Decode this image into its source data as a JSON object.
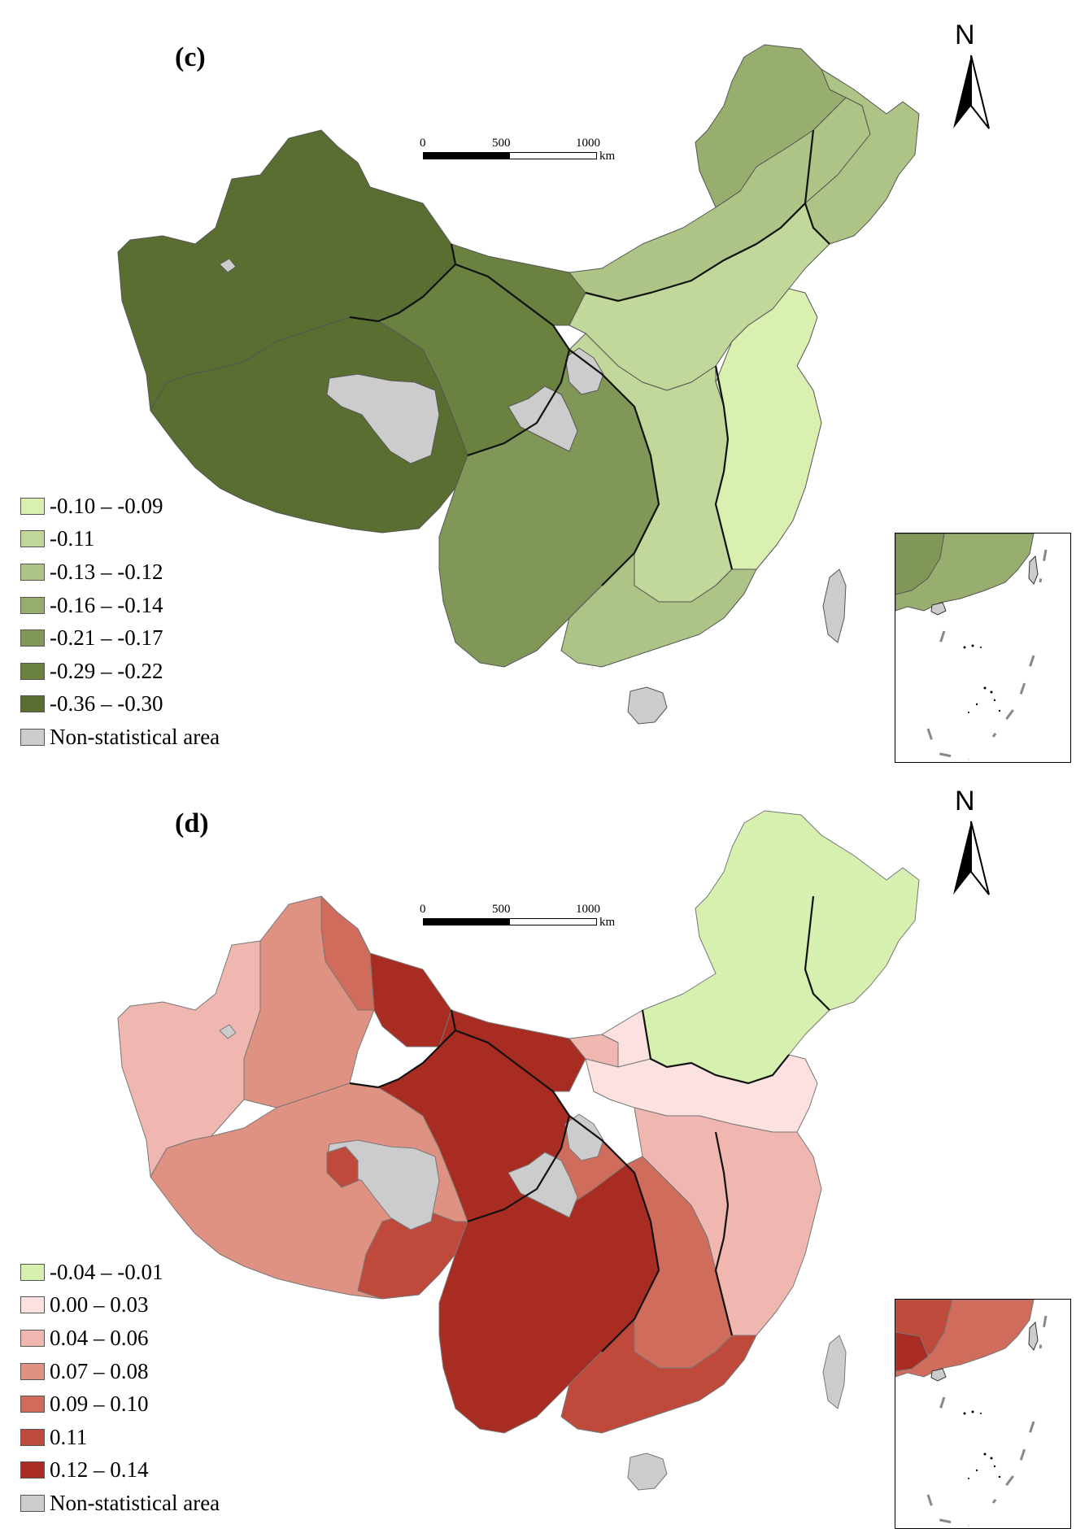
{
  "panels": [
    {
      "id": "c",
      "label": "(c)",
      "north_label": "N",
      "scale": {
        "ticks": [
          "0",
          "500",
          "1000"
        ],
        "unit": "km"
      },
      "legend": [
        {
          "label": "-0.10 – -0.09",
          "color": "#d9f0b0"
        },
        {
          "label": "-0.11",
          "color": "#c2d89a"
        },
        {
          "label": "-0.13 – -0.12",
          "color": "#adc486"
        },
        {
          "label": "-0.16 – -0.14",
          "color": "#98ae6e"
        },
        {
          "label": "-0.21 – -0.17",
          "color": "#819758"
        },
        {
          "label": "-0.29 – -0.22",
          "color": "#6b8140"
        },
        {
          "label": "-0.36 – -0.30",
          "color": "#5a6e31"
        },
        {
          "label": "Non-statistical area",
          "color": "#cccccc"
        }
      ]
    },
    {
      "id": "d",
      "label": "(d)",
      "north_label": "N",
      "scale": {
        "ticks": [
          "0",
          "500",
          "1000"
        ],
        "unit": "km"
      },
      "legend": [
        {
          "label": "-0.04 – -0.01",
          "color": "#d6f0b0"
        },
        {
          "label": "0.00 – 0.03",
          "color": "#fde0e0"
        },
        {
          "label": "0.04 – 0.06",
          "color": "#f0b6b0"
        },
        {
          "label": "0.07 – 0.08",
          "color": "#e09282"
        },
        {
          "label": "0.09 – 0.10",
          "color": "#cf6c5c"
        },
        {
          "label": "0.11",
          "color": "#bf4a3c"
        },
        {
          "label": "0.12 – 0.14",
          "color": "#a82c22"
        },
        {
          "label": "Non-statistical area",
          "color": "#cccccc"
        }
      ]
    }
  ]
}
